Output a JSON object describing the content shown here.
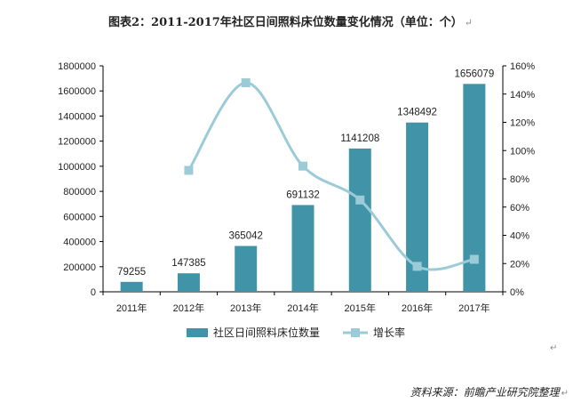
{
  "title": "图表2：2011-2017年社区日间照料床位数量变化情况（单位：个）",
  "source": "资料来源：前瞻产业研究院整理",
  "colors": {
    "bar": "#4194a8",
    "line": "#9ccbd8",
    "axis": "#000000"
  },
  "chart_data": {
    "type": "bar",
    "title": "图表2：2011-2017年社区日间照料床位数量变化情况（单位：个）",
    "categories": [
      "2011年",
      "2012年",
      "2013年",
      "2014年",
      "2015年",
      "2016年",
      "2017年"
    ],
    "series": [
      {
        "name": "社区日间照料床位数量",
        "type": "bar",
        "axis": "left",
        "values": [
          79255,
          147385,
          365042,
          691132,
          1141208,
          1348492,
          1656079
        ]
      },
      {
        "name": "增长率",
        "type": "line",
        "axis": "right",
        "marker": "square",
        "values": [
          null,
          0.86,
          1.48,
          0.89,
          0.65,
          0.18,
          0.23
        ]
      }
    ],
    "ylim_left": [
      0,
      1800000
    ],
    "yticks_left": [
      "0",
      "200000",
      "400000",
      "600000",
      "800000",
      "1000000",
      "1200000",
      "1400000",
      "1600000",
      "1800000"
    ],
    "ylim_right": [
      0,
      1.6
    ],
    "yticks_right": [
      "0%",
      "20%",
      "40%",
      "60%",
      "80%",
      "100%",
      "120%",
      "140%",
      "160%"
    ],
    "data_labels": [
      "79255",
      "147385",
      "365042",
      "691132",
      "1141208",
      "1348492",
      "1656079"
    ],
    "grid": false,
    "legend": "bottom-center",
    "legend_labels": [
      "社区日间照料床位数量",
      "增长率"
    ]
  }
}
